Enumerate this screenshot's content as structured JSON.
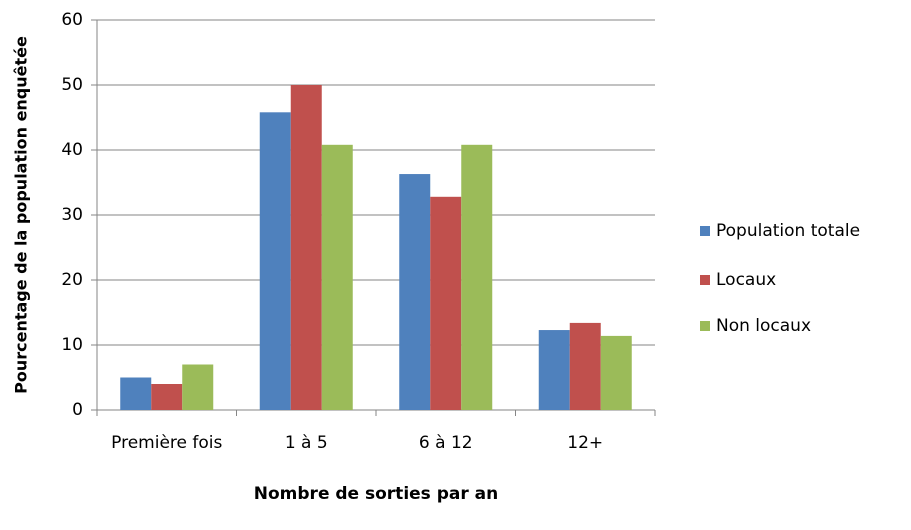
{
  "chart_data": {
    "type": "bar",
    "categories": [
      "Première fois",
      "1 à 5",
      "6 à 12",
      "12+"
    ],
    "series": [
      {
        "name": "Population totale",
        "color": "#4f81bd",
        "values": [
          5,
          45.8,
          36.3,
          12.3
        ]
      },
      {
        "name": "Locaux",
        "color": "#c0504d",
        "values": [
          4,
          50,
          32.8,
          13.4
        ]
      },
      {
        "name": "Non locaux",
        "color": "#9bbb59",
        "values": [
          7,
          40.8,
          40.8,
          11.4
        ]
      }
    ],
    "xlabel": "Nombre de sorties par an",
    "ylabel": "Pourcentage de la population enquêtée",
    "ylim": [
      0,
      60
    ],
    "yticks": [
      0,
      10,
      20,
      30,
      40,
      50,
      60
    ],
    "grid": true,
    "legend": "right"
  }
}
